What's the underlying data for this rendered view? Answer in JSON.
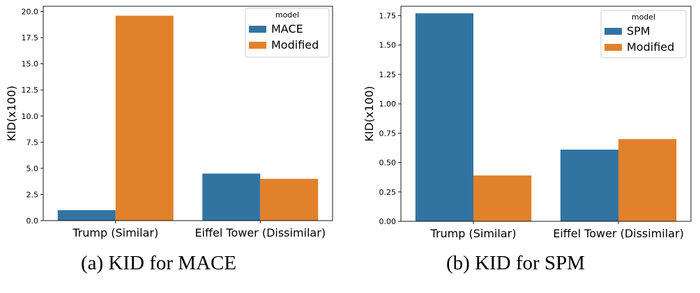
{
  "chart_data": [
    {
      "type": "bar",
      "caption": "(a) KID for MACE",
      "categories": [
        "Trump (Similar)",
        "Eiffel Tower (Dissimilar)"
      ],
      "series": [
        {
          "name": "MACE",
          "values": [
            1.0,
            4.5
          ],
          "color": "#3274a1"
        },
        {
          "name": "Modified",
          "values": [
            19.6,
            4.0
          ],
          "color": "#e1812c"
        }
      ],
      "legend_title": "model",
      "legend_position": "top-right",
      "xlabel": "",
      "ylabel": "KID(x100)",
      "ylim": [
        0,
        20.5
      ],
      "yticks": [
        0,
        2.5,
        5,
        7.5,
        10,
        12.5,
        15,
        17.5,
        20
      ],
      "ytick_labels": [
        "0.0",
        "2.5",
        "5.0",
        "7.5",
        "10.0",
        "12.5",
        "15.0",
        "17.5",
        "20.0"
      ],
      "grid": false
    },
    {
      "type": "bar",
      "caption": "(b) KID for SPM",
      "categories": [
        "Trump (Similar)",
        "Eiffel Tower (Dissimilar)"
      ],
      "series": [
        {
          "name": "SPM",
          "values": [
            1.77,
            0.61
          ],
          "color": "#3274a1"
        },
        {
          "name": "Modified",
          "values": [
            0.39,
            0.7
          ],
          "color": "#e1812c"
        }
      ],
      "legend_title": "model",
      "legend_position": "top-right",
      "xlabel": "",
      "ylabel": "KID(x100)",
      "ylim": [
        0,
        1.83
      ],
      "yticks": [
        0,
        0.25,
        0.5,
        0.75,
        1.0,
        1.25,
        1.5,
        1.75
      ],
      "ytick_labels": [
        "0.00",
        "0.25",
        "0.50",
        "0.75",
        "1.00",
        "1.25",
        "1.50",
        "1.75"
      ],
      "grid": false
    }
  ]
}
